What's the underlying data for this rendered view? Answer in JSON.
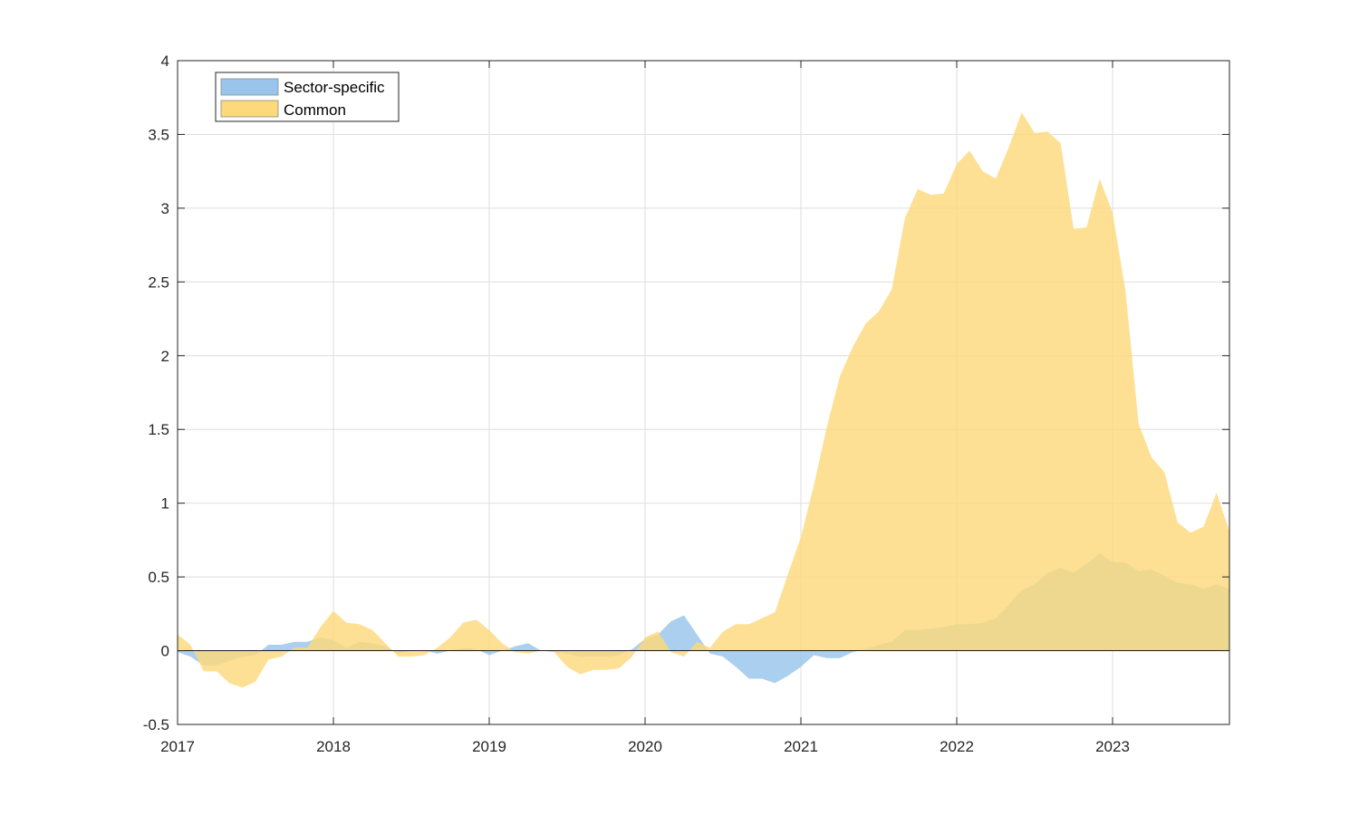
{
  "chart_data": {
    "type": "area",
    "title": "",
    "xlabel": "",
    "ylabel": "",
    "xlim": [
      2017.0,
      2023.75
    ],
    "ylim": [
      -0.5,
      4
    ],
    "x_ticks": [
      2017,
      2018,
      2019,
      2020,
      2021,
      2022,
      2023
    ],
    "x_tick_labels": [
      "2017",
      "2018",
      "2019",
      "2020",
      "2021",
      "2022",
      "2023"
    ],
    "y_ticks": [
      -0.5,
      0,
      0.5,
      1,
      1.5,
      2,
      2.5,
      3,
      3.5,
      4
    ],
    "y_tick_labels": [
      "-0.5",
      "0",
      "0.5",
      "1",
      "1.5",
      "2",
      "2.5",
      "3",
      "3.5",
      "4"
    ],
    "grid": true,
    "legend_position": "top-left",
    "x": [
      2017.0,
      2017.083,
      2017.167,
      2017.25,
      2017.333,
      2017.417,
      2017.5,
      2017.583,
      2017.667,
      2017.75,
      2017.833,
      2017.917,
      2018.0,
      2018.083,
      2018.167,
      2018.25,
      2018.333,
      2018.417,
      2018.5,
      2018.583,
      2018.667,
      2018.75,
      2018.833,
      2018.917,
      2019.0,
      2019.083,
      2019.167,
      2019.25,
      2019.333,
      2019.417,
      2019.5,
      2019.583,
      2019.667,
      2019.75,
      2019.833,
      2019.917,
      2020.0,
      2020.083,
      2020.167,
      2020.25,
      2020.333,
      2020.417,
      2020.5,
      2020.583,
      2020.667,
      2020.75,
      2020.833,
      2020.917,
      2021.0,
      2021.083,
      2021.167,
      2021.25,
      2021.333,
      2021.417,
      2021.5,
      2021.583,
      2021.667,
      2021.75,
      2021.833,
      2021.917,
      2022.0,
      2022.083,
      2022.167,
      2022.25,
      2022.333,
      2022.417,
      2022.5,
      2022.583,
      2022.667,
      2022.75,
      2022.833,
      2022.917,
      2023.0,
      2023.083,
      2023.167,
      2023.25,
      2023.333,
      2023.417,
      2023.5,
      2023.583,
      2023.667,
      2023.75
    ],
    "series": [
      {
        "name": "Sector-specific",
        "color": "#99c5ec",
        "values": [
          -0.01,
          -0.04,
          -0.1,
          -0.1,
          -0.07,
          -0.04,
          -0.03,
          0.04,
          0.04,
          0.06,
          0.06,
          0.09,
          0.07,
          0.02,
          0.06,
          0.05,
          0.03,
          -0.02,
          0.0,
          0.0,
          -0.02,
          0.0,
          0.02,
          0.01,
          -0.03,
          0.0,
          0.03,
          0.05,
          0.0,
          -0.01,
          -0.02,
          -0.04,
          -0.04,
          -0.04,
          -0.03,
          0.01,
          0.08,
          0.11,
          0.2,
          0.24,
          0.11,
          -0.02,
          -0.04,
          -0.11,
          -0.19,
          -0.19,
          -0.22,
          -0.17,
          -0.11,
          -0.03,
          -0.05,
          -0.05,
          -0.01,
          0.01,
          0.04,
          0.06,
          0.14,
          0.14,
          0.15,
          0.16,
          0.18,
          0.18,
          0.19,
          0.22,
          0.31,
          0.41,
          0.45,
          0.53,
          0.56,
          0.53,
          0.59,
          0.66,
          0.6,
          0.6,
          0.54,
          0.55,
          0.51,
          0.46,
          0.45,
          0.42,
          0.45,
          0.42
        ]
      },
      {
        "name": "Common",
        "color": "#fcd97b",
        "values": [
          0.11,
          0.04,
          -0.14,
          -0.14,
          -0.22,
          -0.25,
          -0.21,
          -0.06,
          -0.04,
          0.02,
          0.02,
          0.16,
          0.27,
          0.19,
          0.18,
          0.14,
          0.05,
          -0.04,
          -0.04,
          -0.03,
          0.02,
          0.09,
          0.19,
          0.21,
          0.14,
          0.05,
          -0.01,
          -0.02,
          0.0,
          -0.01,
          -0.11,
          -0.16,
          -0.13,
          -0.13,
          -0.12,
          -0.04,
          0.09,
          0.13,
          -0.01,
          -0.04,
          0.06,
          0.02,
          0.13,
          0.18,
          0.18,
          0.22,
          0.26,
          0.52,
          0.77,
          1.12,
          1.52,
          1.86,
          2.06,
          2.22,
          2.3,
          2.45,
          2.93,
          3.13,
          3.09,
          3.1,
          3.3,
          3.39,
          3.25,
          3.2,
          3.41,
          3.65,
          3.51,
          3.52,
          3.44,
          2.86,
          2.87,
          3.2,
          2.97,
          2.44,
          1.54,
          1.31,
          1.21,
          0.87,
          0.8,
          0.84,
          1.07,
          0.81
        ]
      }
    ]
  }
}
